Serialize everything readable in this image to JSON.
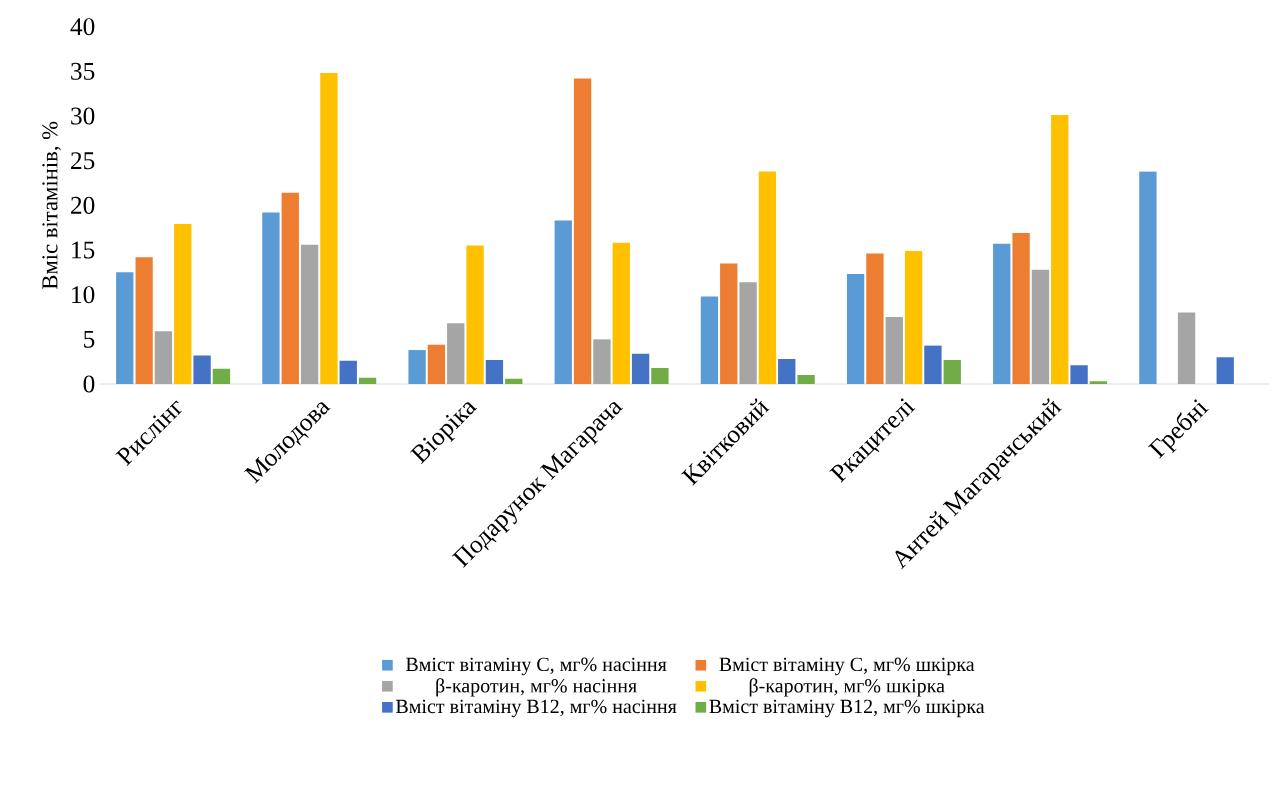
{
  "chart_data": {
    "type": "bar",
    "ylabel": "Вміс вітамінів, %",
    "categories": [
      "Рислінг",
      "Молодова",
      "Віоріка",
      "Подарунок Магарача",
      "Квітковий",
      "Ркацителі",
      "Антей Магарачський",
      "Гребні"
    ],
    "series": [
      {
        "name": "Вміст вітаміну С, мг% насіння",
        "color": "#5b9bd5",
        "values": [
          12.5,
          19.2,
          3.8,
          18.3,
          9.8,
          12.3,
          15.7,
          23.8
        ]
      },
      {
        "name": "Вміст вітаміну С, мг% шкірка",
        "color": "#ed7d31",
        "values": [
          14.2,
          21.4,
          4.4,
          34.2,
          13.5,
          14.6,
          16.9,
          0
        ]
      },
      {
        "name": "β-каротин, мг% насіння",
        "color": "#a5a5a5",
        "values": [
          5.9,
          15.6,
          6.8,
          5.0,
          11.4,
          7.5,
          12.8,
          8.0
        ]
      },
      {
        "name": "β-каротин, мг% шкірка",
        "color": "#ffc000",
        "values": [
          17.9,
          34.8,
          15.5,
          15.8,
          23.8,
          14.9,
          30.1,
          0
        ]
      },
      {
        "name": "Вміст вітаміну В12, мг% насіння",
        "color": "#4472c4",
        "values": [
          3.2,
          2.6,
          2.7,
          3.4,
          2.8,
          4.3,
          2.1,
          3.0
        ]
      },
      {
        "name": "Вміст вітаміну В12, мг% шкірка",
        "color": "#70ad47",
        "values": [
          1.7,
          0.7,
          0.6,
          1.8,
          1.0,
          2.7,
          0.3,
          0
        ]
      }
    ],
    "ylim": [
      0,
      40
    ],
    "yticks": [
      0,
      5,
      10,
      15,
      20,
      25,
      30,
      35,
      40
    ],
    "legend": "bottom"
  }
}
